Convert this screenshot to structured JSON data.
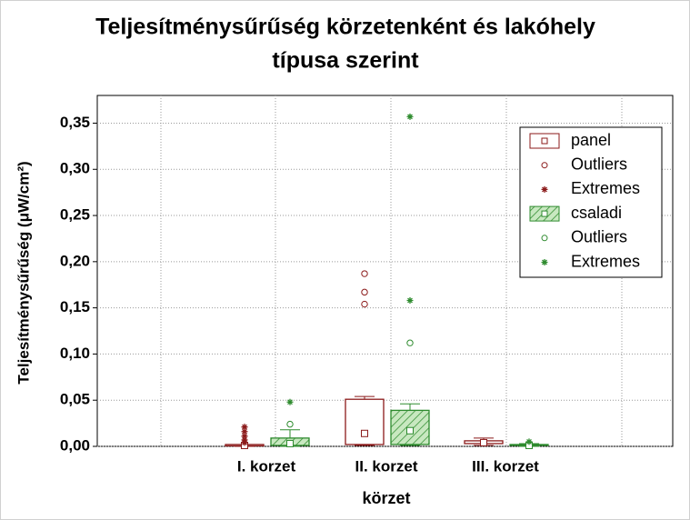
{
  "chart_data": {
    "type": "box",
    "title": [
      "Teljesítménysűrűség körzetenként és lakóhely",
      "típusa szerint"
    ],
    "x_label": "körzet",
    "y_label": "Teljesítménysűrűség (μW/cm²)",
    "categories": [
      "I. korzet",
      "II. korzet",
      "III. korzet"
    ],
    "ylim": [
      0,
      0.38
    ],
    "yticks": [
      {
        "value": 0,
        "label": "0,00"
      },
      {
        "value": 0.05,
        "label": "0,05"
      },
      {
        "value": 0.1,
        "label": "0,10"
      },
      {
        "value": 0.15,
        "label": "0,15"
      },
      {
        "value": 0.2,
        "label": "0,20"
      },
      {
        "value": 0.25,
        "label": "0,25"
      },
      {
        "value": 0.3,
        "label": "0,30"
      },
      {
        "value": 0.35,
        "label": "0,35"
      }
    ],
    "grid": true,
    "legend_position": "top-right",
    "series": [
      {
        "name": "panel",
        "color": "#8b1a1a",
        "hatch": false,
        "outliers_label": "Outliers",
        "extremes_label": "Extremes",
        "boxes": [
          {
            "min": 0,
            "q1": 0.0005,
            "median": 0.001,
            "q3": 0.002,
            "max": 0.002,
            "outliers": [],
            "extremes": [
              0.021,
              0.016,
              0.011,
              0.007,
              0.004
            ]
          },
          {
            "min": 0.001,
            "q1": 0.002,
            "median": 0.014,
            "q3": 0.051,
            "max": 0.054,
            "outliers": [
              0.187,
              0.167,
              0.154
            ],
            "extremes": []
          },
          {
            "min": 0.001,
            "q1": 0.003,
            "median": 0.004,
            "q3": 0.006,
            "max": 0.009,
            "outliers": [],
            "extremes": []
          }
        ]
      },
      {
        "name": "csaladi",
        "color": "#2e8b2e",
        "hatch": true,
        "outliers_label": "Outliers",
        "extremes_label": "Extremes",
        "boxes": [
          {
            "min": 0,
            "q1": 0.001,
            "median": 0.003,
            "q3": 0.009,
            "max": 0.018,
            "outliers": [
              0.024
            ],
            "extremes": [
              0.048
            ]
          },
          {
            "min": 0.001,
            "q1": 0.002,
            "median": 0.017,
            "q3": 0.039,
            "max": 0.046,
            "outliers": [
              0.112
            ],
            "extremes": [
              0.158,
              0.357
            ]
          },
          {
            "min": 0,
            "q1": 0.001,
            "median": 0.001,
            "q3": 0.002,
            "max": 0.003,
            "outliers": [],
            "extremes": [
              0.005
            ]
          }
        ]
      }
    ]
  }
}
